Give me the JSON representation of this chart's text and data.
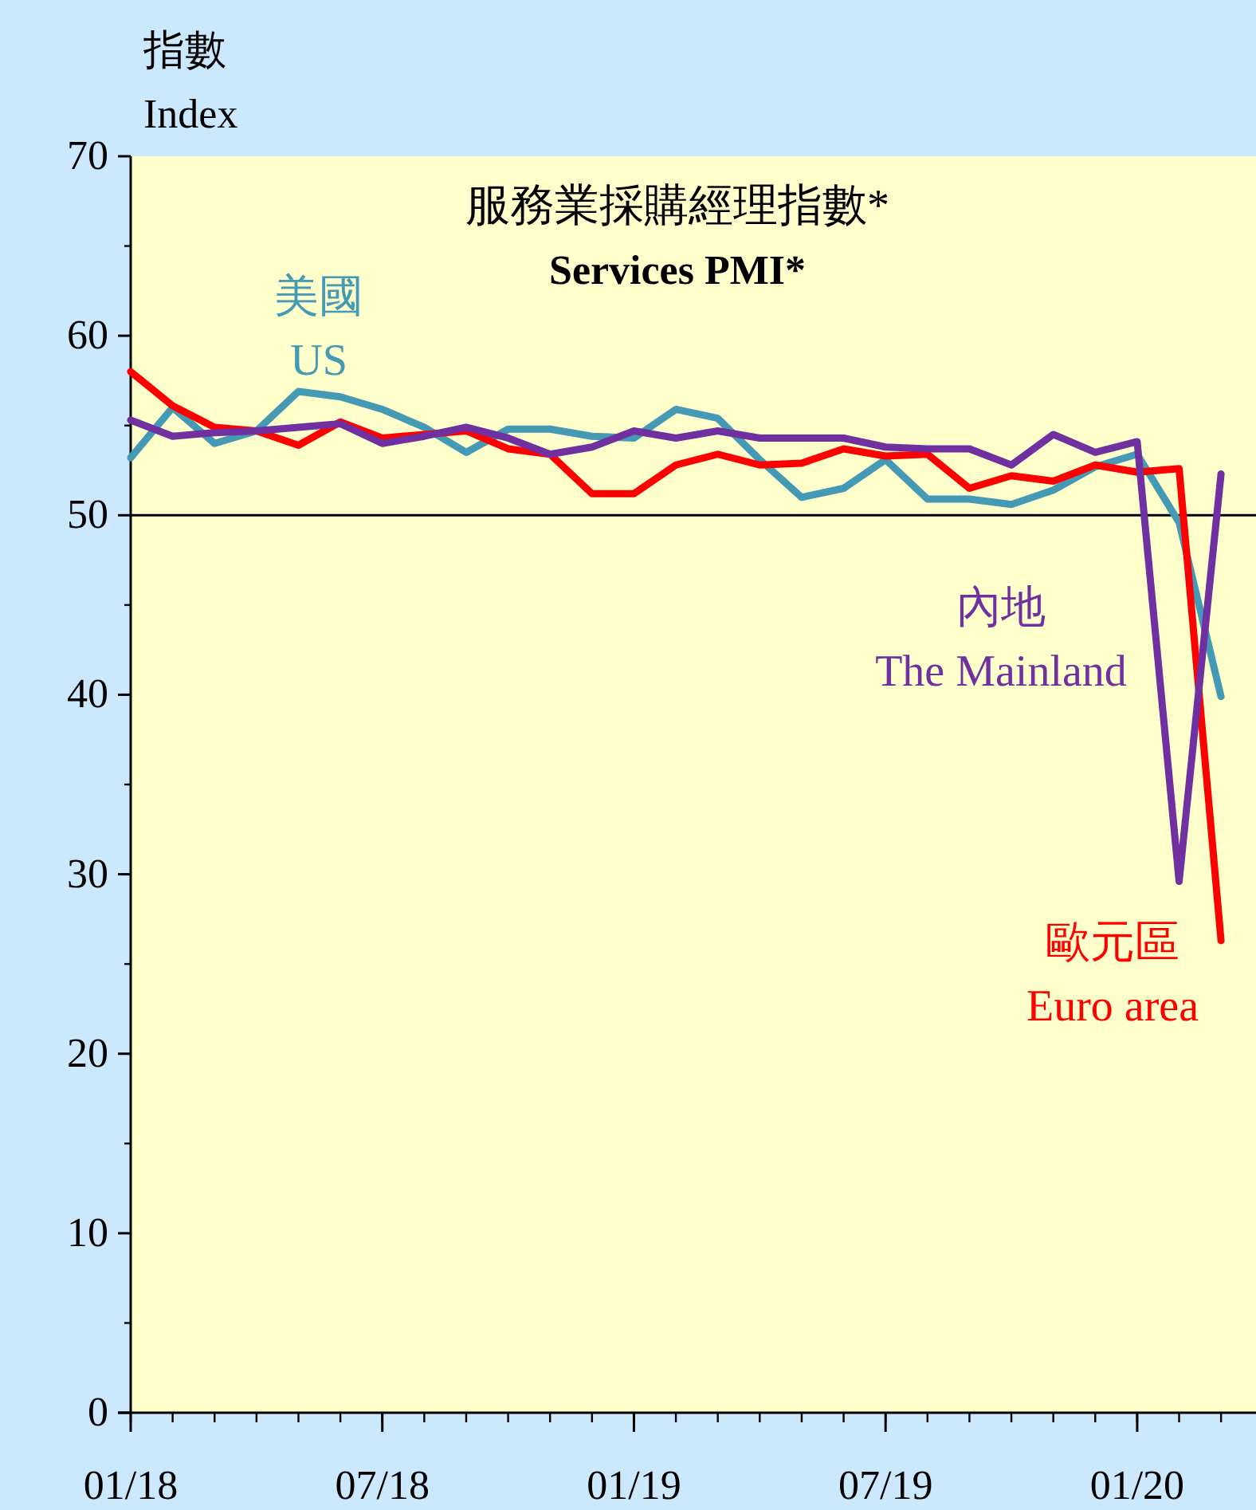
{
  "chart_data": {
    "type": "line",
    "title": "服務業採購經理指數*",
    "subtitle": "Services PMI*",
    "ylabel": "指數\nIndex",
    "x": [
      "2018-01",
      "2018-02",
      "2018-03",
      "2018-04",
      "2018-05",
      "2018-06",
      "2018-07",
      "2018-08",
      "2018-09",
      "2018-10",
      "2018-11",
      "2018-12",
      "2019-01",
      "2019-02",
      "2019-03",
      "2019-04",
      "2019-05",
      "2019-06",
      "2019-07",
      "2019-08",
      "2019-09",
      "2019-10",
      "2019-11",
      "2019-12",
      "2020-01",
      "2020-02",
      "2020-03"
    ],
    "series": [
      {
        "name": "美國\nUS",
        "color": "#4499b4",
        "values": [
          53.2,
          56.0,
          54.0,
          54.7,
          56.9,
          56.6,
          55.9,
          54.9,
          53.5,
          54.8,
          54.8,
          54.4,
          54.3,
          55.9,
          55.4,
          53.1,
          51.0,
          51.5,
          53.1,
          50.9,
          50.9,
          50.6,
          51.4,
          52.7,
          53.4,
          49.6,
          39.9
        ]
      },
      {
        "name": "歐元區\nEuro area",
        "color": "#ff0000",
        "values": [
          58.0,
          56.1,
          54.9,
          54.7,
          53.9,
          55.2,
          54.3,
          54.5,
          54.7,
          53.7,
          53.4,
          51.2,
          51.2,
          52.8,
          53.4,
          52.8,
          52.9,
          53.7,
          53.3,
          53.4,
          51.5,
          52.2,
          51.9,
          52.8,
          52.4,
          52.6,
          26.3
        ]
      },
      {
        "name": "內地\nThe Mainland",
        "color": "#7030a0",
        "values": [
          55.3,
          54.4,
          54.6,
          54.7,
          54.9,
          55.1,
          54.0,
          54.4,
          54.9,
          54.3,
          53.4,
          53.8,
          54.7,
          54.3,
          54.7,
          54.3,
          54.3,
          54.3,
          53.8,
          53.7,
          53.7,
          52.8,
          54.5,
          53.5,
          54.1,
          29.6,
          52.3
        ]
      }
    ],
    "xlim": [
      "2018-01",
      "2020-03-26"
    ],
    "xticks": [
      {
        "value": "2018-01",
        "label": "01/18"
      },
      {
        "value": "2018-07",
        "label": "07/18"
      },
      {
        "value": "2019-01",
        "label": "01/19"
      },
      {
        "value": "2019-07",
        "label": "07/19"
      },
      {
        "value": "2020-01",
        "label": "01/20"
      }
    ],
    "ylim": [
      0,
      70
    ],
    "yticks": [
      0,
      10,
      20,
      30,
      40,
      50,
      60,
      70
    ],
    "ref_lines": [
      {
        "axis": "y",
        "value": 50,
        "color": "#000000"
      }
    ],
    "grid": false,
    "marker": "none",
    "line_style": "solid"
  }
}
